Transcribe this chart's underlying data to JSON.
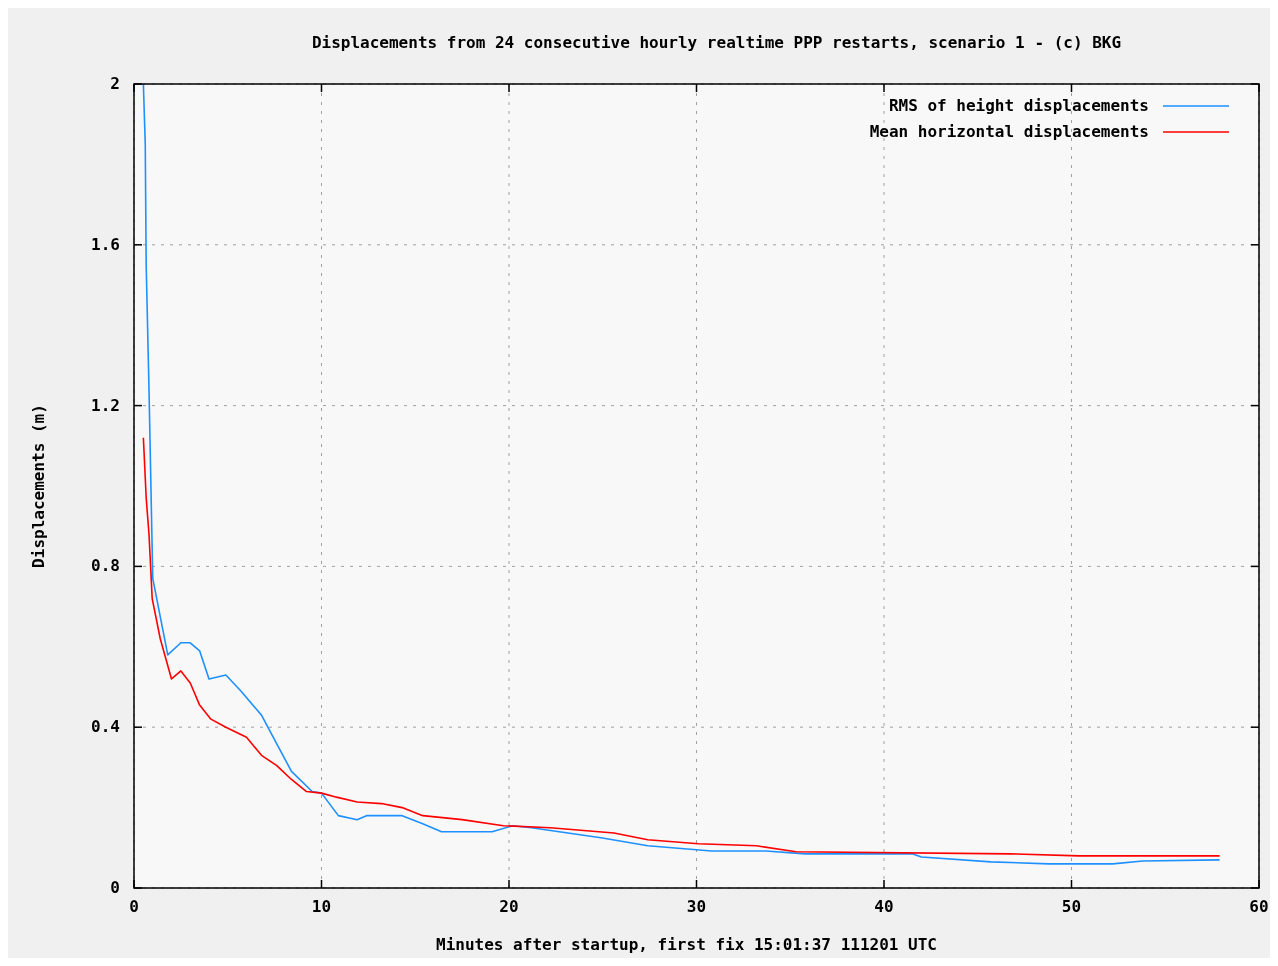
{
  "chart_data": {
    "type": "line",
    "title": "Displacements from 24 consecutive hourly realtime PPP restarts, scenario 1 - (c) BKG",
    "xlabel": "Minutes after startup, first fix 15:01:37 111201 UTC",
    "ylabel": "Displacements (m)",
    "xlim": [
      0,
      60
    ],
    "xticks": [
      0,
      10,
      20,
      30,
      40,
      50,
      60
    ],
    "ylim": [
      0,
      2
    ],
    "yticks": [
      0,
      {
        "value": 0.4,
        "label": "0.4"
      },
      {
        "value": 0.8,
        "label": "0.8"
      },
      {
        "value": 1.2,
        "label": "1.2"
      },
      {
        "value": 1.6,
        "label": "1.6"
      },
      2
    ],
    "grid": true,
    "legend": "top right",
    "series": [
      {
        "name": "RMS of height displacements",
        "color": "#1e90ff",
        "x": [
          0.5,
          0.6,
          0.65,
          0.8,
          1.0,
          1.8,
          2.5,
          3.0,
          3.5,
          4.0,
          4.9,
          5.7,
          6.8,
          7.6,
          8.4,
          9.5,
          10,
          10.9,
          11.9,
          12.4,
          14.3,
          15.4,
          16.4,
          19.1,
          20.2,
          21.2,
          24.9,
          27.4,
          30.8,
          33.7,
          35.8,
          41.5,
          42.0,
          45.7,
          48.8,
          52.2,
          53.8,
          57.9
        ],
        "values": [
          2.0,
          1.85,
          1.55,
          1.24,
          0.77,
          0.58,
          0.61,
          0.61,
          0.59,
          0.52,
          0.53,
          0.49,
          0.43,
          0.36,
          0.29,
          0.24,
          0.236,
          0.18,
          0.17,
          0.18,
          0.18,
          0.16,
          0.14,
          0.14,
          0.155,
          0.15,
          0.125,
          0.105,
          0.092,
          0.092,
          0.085,
          0.085,
          0.077,
          0.065,
          0.06,
          0.06,
          0.067,
          0.07
        ]
      },
      {
        "name": "Mean horizontal displacements",
        "color": "#ff0000",
        "x": [
          0.5,
          0.65,
          0.8,
          0.97,
          1.4,
          2.0,
          2.5,
          3.0,
          3.5,
          4.1,
          4.9,
          6.0,
          6.8,
          7.6,
          8.4,
          9.2,
          10,
          10.8,
          11.9,
          13.2,
          14.3,
          15.4,
          17.5,
          19.7,
          22.2,
          25.6,
          27.4,
          30.1,
          33.2,
          35.3,
          46.7,
          50.4,
          57.9
        ],
        "values": [
          1.12,
          0.97,
          0.88,
          0.72,
          0.62,
          0.52,
          0.54,
          0.51,
          0.455,
          0.42,
          0.4,
          0.375,
          0.33,
          0.305,
          0.27,
          0.24,
          0.236,
          0.226,
          0.214,
          0.21,
          0.2,
          0.18,
          0.17,
          0.155,
          0.15,
          0.137,
          0.12,
          0.11,
          0.105,
          0.09,
          0.085,
          0.08,
          0.08
        ]
      }
    ]
  }
}
